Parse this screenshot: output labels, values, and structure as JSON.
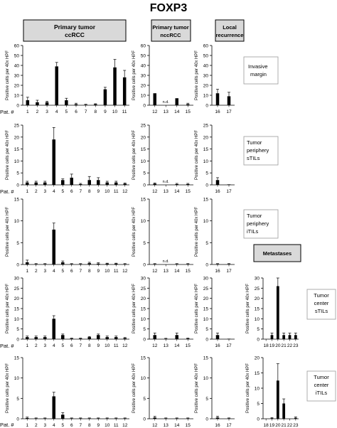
{
  "title": "FOXP3",
  "headers": {
    "primary_ccrcc": [
      "Primary tumor",
      "ccRCC"
    ],
    "primary_nccrcc": [
      "Primary tumor",
      "nccRCC"
    ],
    "local_recurrence": [
      "Local",
      "recurrence"
    ],
    "metastases": "Metastases"
  },
  "row_labels": {
    "invasive_margin": [
      "Invasive",
      "margin"
    ],
    "tumor_periphery_stils": [
      "Tumor",
      "periphery",
      "sTILs"
    ],
    "tumor_periphery_itils": [
      "Tumor",
      "periphery",
      "iTILs"
    ],
    "tumor_center_stils": [
      "Tumor",
      "center",
      "sTILs"
    ],
    "tumor_center_itils": [
      "Tumor",
      "center",
      "iTILs"
    ]
  },
  "pat_label": "Pat. #",
  "nd_label": "n.d.",
  "y_axis_label": "Positive cells per 40x HPF",
  "colors": {
    "bar": "#000000",
    "header_fill": "#d9d9d9",
    "axis": "#000000"
  },
  "chart_data": [
    {
      "type": "bar",
      "name": "ccRCC invasive margin",
      "categories": [
        "1",
        "2",
        "3",
        "4",
        "5",
        "6",
        "7",
        "8",
        "9",
        "10",
        "11"
      ],
      "values": [
        5,
        3,
        3,
        39,
        5,
        1,
        0.5,
        1,
        16,
        38,
        28
      ],
      "errors": [
        3,
        2,
        1,
        4,
        2,
        1,
        0.5,
        0.5,
        2,
        8,
        7
      ],
      "ylim": [
        0,
        60
      ],
      "yticks": [
        0,
        10,
        20,
        30,
        40,
        50,
        60
      ]
    },
    {
      "type": "bar",
      "name": "nccRCC invasive margin",
      "categories": [
        "12",
        "13",
        "14",
        "15"
      ],
      "values": [
        12,
        null,
        7,
        1
      ],
      "errors": [
        0,
        0,
        0,
        1
      ],
      "ylim": [
        0,
        60
      ],
      "yticks": [
        0,
        10,
        20,
        30,
        40,
        50,
        60
      ]
    },
    {
      "type": "bar",
      "name": "local recurrence invasive margin",
      "categories": [
        "16",
        "17"
      ],
      "values": [
        12,
        9
      ],
      "errors": [
        4,
        4
      ],
      "ylim": [
        0,
        60
      ],
      "yticks": [
        0,
        10,
        20,
        30,
        40,
        50,
        60
      ]
    },
    {
      "type": "bar",
      "name": "ccRCC tumor periphery sTILs",
      "categories": [
        "1",
        "2",
        "3",
        "4",
        "5",
        "6",
        "7",
        "8",
        "9",
        "10",
        "11",
        "12"
      ],
      "values": [
        1,
        1,
        1,
        19,
        2,
        3,
        0.3,
        2,
        2,
        1,
        1,
        0.5
      ],
      "errors": [
        0.5,
        0.5,
        0.5,
        5,
        0.5,
        1.5,
        0.3,
        1.5,
        1,
        0.5,
        0.5,
        0.3
      ],
      "ylim": [
        0,
        25
      ],
      "yticks": [
        0,
        5,
        10,
        15,
        20,
        25
      ]
    },
    {
      "type": "bar",
      "name": "nccRCC tumor periphery sTILs",
      "categories": [
        "12",
        "13",
        "14",
        "15"
      ],
      "values": [
        0.5,
        null,
        0.3,
        0.3
      ],
      "errors": [
        0.3,
        0,
        0.3,
        0.3
      ],
      "ylim": [
        0,
        25
      ],
      "yticks": [
        0,
        5,
        10,
        15,
        20,
        25
      ]
    },
    {
      "type": "bar",
      "name": "local recurrence tumor periphery sTILs",
      "categories": [
        "16",
        "17"
      ],
      "values": [
        2,
        0.2
      ],
      "errors": [
        1,
        0
      ],
      "ylim": [
        0,
        25
      ],
      "yticks": [
        0,
        5,
        10,
        15,
        20,
        25
      ]
    },
    {
      "type": "bar",
      "name": "ccRCC tumor periphery iTILs",
      "categories": [
        "1",
        "2",
        "3",
        "4",
        "5",
        "6",
        "7",
        "8",
        "9",
        "10",
        "11",
        "12"
      ],
      "values": [
        0.5,
        0.1,
        0.1,
        8,
        0.5,
        0.1,
        0.1,
        0.3,
        0.2,
        0.2,
        0.2,
        0.1
      ],
      "errors": [
        0.5,
        0.1,
        0.1,
        1.5,
        0.3,
        0.1,
        0.1,
        0.2,
        0.2,
        0.1,
        0.1,
        0.1
      ],
      "ylim": [
        0,
        15
      ],
      "yticks": [
        0,
        5,
        10,
        15
      ]
    },
    {
      "type": "bar",
      "name": "nccRCC tumor periphery iTILs",
      "categories": [
        "12",
        "13",
        "14",
        "15"
      ],
      "values": [
        0.1,
        null,
        0.1,
        0.1
      ],
      "errors": [
        0.1,
        0,
        0.1,
        0.1
      ],
      "ylim": [
        0,
        15
      ],
      "yticks": [
        0,
        5,
        10,
        15
      ]
    },
    {
      "type": "bar",
      "name": "local recurrence tumor periphery iTILs",
      "categories": [
        "16",
        "17"
      ],
      "values": [
        0.1,
        0.1
      ],
      "errors": [
        0.1,
        0.1
      ],
      "ylim": [
        0,
        15
      ],
      "yticks": [
        0,
        5,
        10,
        15
      ]
    },
    {
      "type": "bar",
      "name": "ccRCC tumor center sTILs",
      "categories": [
        "1",
        "2",
        "3",
        "4",
        "5",
        "6",
        "7",
        "8",
        "9",
        "10",
        "11",
        "12"
      ],
      "values": [
        1,
        1,
        1,
        10,
        2,
        0.3,
        0.3,
        1,
        2,
        1,
        1,
        0.5
      ],
      "errors": [
        0.5,
        0.5,
        0.5,
        1.5,
        0.5,
        0.2,
        0.2,
        0.3,
        0.5,
        0.5,
        0.5,
        0.3
      ],
      "ylim": [
        0,
        30
      ],
      "yticks": [
        0,
        5,
        10,
        15,
        20,
        25,
        30
      ]
    },
    {
      "type": "bar",
      "name": "nccRCC tumor center sTILs",
      "categories": [
        "12",
        "13",
        "14",
        "15"
      ],
      "values": [
        2,
        0.2,
        2,
        0.3
      ],
      "errors": [
        1,
        0.2,
        1,
        0.2
      ],
      "ylim": [
        0,
        30
      ],
      "yticks": [
        0,
        5,
        10,
        15,
        20,
        25,
        30
      ]
    },
    {
      "type": "bar",
      "name": "local recurrence tumor center sTILs",
      "categories": [
        "16",
        "17"
      ],
      "values": [
        2,
        0.2
      ],
      "errors": [
        1,
        0
      ],
      "ylim": [
        0,
        30
      ],
      "yticks": [
        0,
        5,
        10,
        15,
        20,
        25,
        30
      ]
    },
    {
      "type": "bar",
      "name": "metastases tumor center sTILs",
      "categories": [
        "18",
        "19",
        "20",
        "21",
        "22",
        "23"
      ],
      "values": [
        0,
        2,
        26,
        2,
        2,
        2
      ],
      "errors": [
        0,
        1,
        4,
        1,
        1,
        1
      ],
      "ylim": [
        0,
        30
      ],
      "yticks": [
        0,
        5,
        10,
        15,
        20,
        25,
        30
      ]
    },
    {
      "type": "bar",
      "name": "ccRCC tumor center iTILs",
      "categories": [
        "1",
        "2",
        "3",
        "4",
        "5",
        "6",
        "7",
        "8",
        "9",
        "10",
        "11",
        "12"
      ],
      "values": [
        0.2,
        0.1,
        0.1,
        5.5,
        1,
        0.1,
        0.1,
        0.1,
        0.1,
        0.1,
        0.1,
        0.1
      ],
      "errors": [
        0.2,
        0.1,
        0.1,
        1,
        0.5,
        0.1,
        0.1,
        0.1,
        0.1,
        0.1,
        0.1,
        0.1
      ],
      "ylim": [
        0,
        15
      ],
      "yticks": [
        0,
        5,
        10,
        15
      ]
    },
    {
      "type": "bar",
      "name": "nccRCC tumor center iTILs",
      "categories": [
        "12",
        "13",
        "14",
        "15"
      ],
      "values": [
        0.3,
        0.1,
        0.1,
        0.1
      ],
      "errors": [
        0.3,
        0.1,
        0.1,
        0.1
      ],
      "ylim": [
        0,
        15
      ],
      "yticks": [
        0,
        5,
        10,
        15
      ]
    },
    {
      "type": "bar",
      "name": "local recurrence tumor center iTILs",
      "categories": [
        "16",
        "17"
      ],
      "values": [
        0.3,
        0.1
      ],
      "errors": [
        0.3,
        0.1
      ],
      "ylim": [
        0,
        15
      ],
      "yticks": [
        0,
        5,
        10,
        15
      ]
    },
    {
      "type": "bar",
      "name": "metastases tumor center iTILs",
      "categories": [
        "18",
        "19",
        "20",
        "21",
        "22",
        "23"
      ],
      "values": [
        0,
        0.2,
        12.5,
        5,
        0,
        0.3
      ],
      "errors": [
        0,
        0.2,
        5.5,
        1.5,
        0,
        0.3
      ],
      "ylim": [
        0,
        20
      ],
      "yticks": [
        0,
        5,
        10,
        15,
        20
      ]
    }
  ]
}
